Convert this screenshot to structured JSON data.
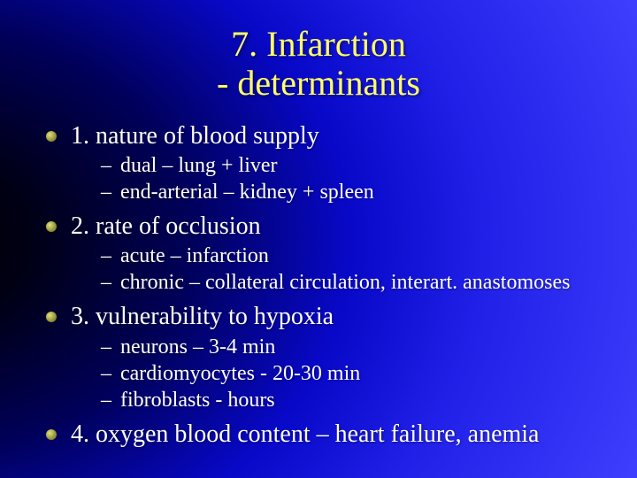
{
  "slide": {
    "title_line1": "7. Infarction",
    "title_line2": "- determinants",
    "items": [
      {
        "label": "1. nature of blood supply",
        "subs": [
          "dual – lung + liver",
          "end-arterial – kidney + spleen"
        ]
      },
      {
        "label": "2. rate of occlusion",
        "subs": [
          "acute – infarction",
          "chronic – collateral circulation, interart. anastomoses"
        ]
      },
      {
        "label": "3. vulnerability to hypoxia",
        "subs": [
          "neurons – 3-4 min",
          "cardiomyocytes - 20-30 min",
          "fibroblasts - hours"
        ]
      },
      {
        "label": "4. oxygen blood content – heart failure, anemia",
        "subs": []
      }
    ],
    "colors": {
      "title_color": "#ffff66",
      "body_color": "#ffffff",
      "bullet_color": "#a0a040"
    },
    "typography": {
      "title_fontsize": 40,
      "main_fontsize": 28,
      "sub_fontsize": 24,
      "font_family": "Times New Roman"
    }
  }
}
